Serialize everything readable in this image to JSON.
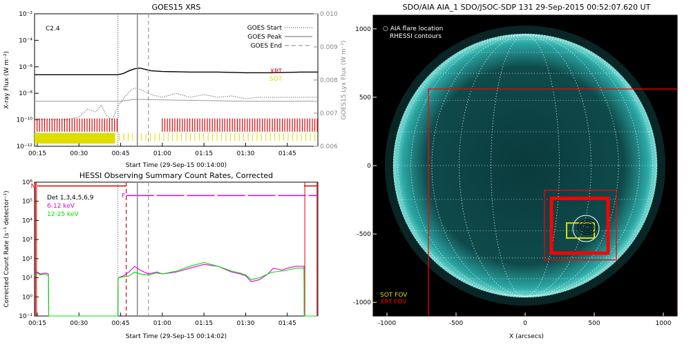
{
  "chart_data": [
    {
      "type": "line",
      "title": "GOES15 XRS",
      "xlabel": "Start Time (29-Sep-15 00:14:00)",
      "ylabel": "X-ray Flux (W m⁻²)",
      "y2label": "GOES15 Lyx Flux (W m⁻²)",
      "x_ticks": [
        "00:15",
        "00:30",
        "00:45",
        "01:00",
        "01:15",
        "01:30",
        "01:45"
      ],
      "x_tick_minutes": [
        15,
        30,
        45,
        60,
        75,
        90,
        105
      ],
      "xlim_minutes": [
        14,
        116
      ],
      "y_ticks": [
        "10⁻²",
        "10⁻⁴",
        "10⁻⁶",
        "10⁻⁸",
        "10⁻¹⁰",
        "10⁻¹²"
      ],
      "y_tick_exponents": [
        -2,
        -4,
        -6,
        -8,
        -10,
        -12
      ],
      "ylim_log": [
        -12,
        -2
      ],
      "y2_ticks": [
        "0.010",
        "0.009",
        "0.008",
        "0.007",
        "0.006"
      ],
      "y2_tick_values": [
        0.01,
        0.009,
        0.008,
        0.007,
        0.006
      ],
      "y2lim": [
        0.006,
        0.01
      ],
      "scale": "log",
      "annotation": "C2.4",
      "legend": {
        "placement": "top-right",
        "entries": [
          {
            "label": "GOES Start",
            "style": "dotted",
            "color": "#555555",
            "minute": 44
          },
          {
            "label": "GOES Peak",
            "style": "solid",
            "color": "#888888",
            "minute": 51
          },
          {
            "label": "GOES End",
            "style": "dashed",
            "color": "#999999",
            "minute": 55
          }
        ]
      },
      "instrument_labels": [
        {
          "label": "XRT",
          "color": "#dd0000"
        },
        {
          "label": "SOT",
          "color": "#dddd00"
        }
      ],
      "series": [
        {
          "name": "",
          "color": "#000000",
          "style": "solid",
          "x": [
            14,
            20,
            30,
            40,
            44,
            46,
            48,
            50,
            52,
            54,
            56,
            60,
            70,
            80,
            90,
            100,
            110,
            116
          ],
          "y_log": [
            -6.6,
            -6.6,
            -6.6,
            -6.6,
            -6.6,
            -6.5,
            -6.3,
            -6.15,
            -6.1,
            -6.2,
            -6.3,
            -6.35,
            -6.4,
            -6.4,
            -6.45,
            -6.45,
            -6.4,
            -6.4
          ]
        },
        {
          "name": "",
          "color": "#333333",
          "style": "dotted",
          "x": [
            14,
            18,
            25,
            30,
            33,
            36,
            38,
            40,
            42,
            44,
            46,
            48,
            50,
            52,
            54,
            56,
            60,
            65,
            70,
            75,
            80,
            85,
            90,
            95,
            100,
            105,
            110,
            116
          ],
          "y_log": [
            -9.9,
            -10.0,
            -10.0,
            -9.8,
            -9.2,
            -9.4,
            -8.9,
            -9.7,
            -10.0,
            -9.0,
            -8.4,
            -7.9,
            -7.6,
            -7.7,
            -7.9,
            -8.1,
            -8.3,
            -8.0,
            -8.3,
            -8.1,
            -8.3,
            -8.2,
            -8.4,
            -8.3,
            -8.3,
            -8.3,
            -8.3,
            -8.3
          ]
        },
        {
          "name": "",
          "color": "#999999",
          "style": "solid",
          "x": [
            14,
            30,
            45,
            50,
            60,
            75,
            90,
            100,
            116
          ],
          "y_log": [
            -8.6,
            -8.6,
            -8.6,
            -8.45,
            -8.5,
            -8.55,
            -8.6,
            -8.6,
            -8.6
          ]
        }
      ],
      "xrt_coverage_minutes": [
        [
          14,
          44.5
        ],
        [
          60,
          116
        ]
      ],
      "sot_coverage_minutes": [
        [
          14,
          43
        ]
      ]
    },
    {
      "type": "line",
      "title": "HESSI Observing Summary Count Rates, Corrected",
      "xlabel": "Start Time (29-Sep-15 00:14:02)",
      "ylabel": "Corrected Count Rate (s⁻¹ detector⁻¹)",
      "x_ticks": [
        "00:15",
        "00:30",
        "00:45",
        "01:00",
        "01:15",
        "01:30",
        "01:45"
      ],
      "x_tick_minutes": [
        15,
        30,
        45,
        60,
        75,
        90,
        105
      ],
      "xlim_minutes": [
        14,
        116
      ],
      "y_ticks": [
        "10⁶",
        "10⁵",
        "10⁴",
        "10³",
        "10²",
        "10¹",
        "10⁰",
        "10⁻¹"
      ],
      "y_tick_exponents": [
        6,
        5,
        4,
        3,
        2,
        1,
        0,
        -1
      ],
      "ylim_log": [
        -1,
        6
      ],
      "scale": "log",
      "legend": {
        "placement": "top-left",
        "entries": [
          {
            "label": "Det 1,3,4,5,6,9",
            "color": "#000000"
          },
          {
            "label": "6-12 keV",
            "color": "#dd00dd"
          },
          {
            "label": "12-25 keV",
            "color": "#00dd00"
          }
        ]
      },
      "flag_labels": [
        {
          "label": "N",
          "color": "#dd0000",
          "minute": 14.5
        },
        {
          "label": "F",
          "color": "#dd00dd",
          "minute": 47
        }
      ],
      "series": [
        {
          "name": "6-12 keV",
          "color": "#dd00dd",
          "x": [
            14,
            15,
            16,
            18,
            19,
            19.1,
            44,
            44.1,
            46,
            48,
            50,
            52,
            55,
            58,
            60,
            65,
            70,
            75,
            80,
            85,
            88,
            90,
            92,
            95,
            98,
            100,
            103,
            105,
            108,
            111,
            111.1,
            116
          ],
          "y_log": [
            1.2,
            1.3,
            1.2,
            1.25,
            1.2,
            -1,
            -1,
            1.0,
            1.1,
            1.3,
            1.6,
            1.4,
            1.2,
            1.3,
            1.2,
            1.3,
            1.5,
            1.7,
            1.6,
            1.3,
            1.2,
            1.1,
            0.8,
            0.9,
            1.2,
            1.5,
            1.4,
            1.5,
            1.6,
            1.6,
            -1,
            -1
          ]
        },
        {
          "name": "12-25 keV",
          "color": "#00dd00",
          "x": [
            14,
            15,
            16,
            18,
            19,
            19.1,
            44,
            44.1,
            46,
            48,
            50,
            52,
            55,
            58,
            60,
            65,
            70,
            75,
            80,
            85,
            88,
            90,
            92,
            95,
            98,
            100,
            103,
            105,
            108,
            111,
            111.1,
            116
          ],
          "y_log": [
            1.1,
            1.25,
            1.15,
            1.2,
            1.1,
            -1,
            -1,
            1.0,
            1.05,
            1.1,
            1.3,
            1.2,
            1.15,
            1.25,
            1.2,
            1.35,
            1.6,
            1.8,
            1.6,
            1.35,
            1.25,
            1.15,
            0.9,
            1.0,
            1.2,
            1.3,
            1.35,
            1.4,
            1.5,
            1.5,
            -1,
            -1
          ]
        }
      ],
      "night_intervals_minutes": [
        [
          14,
          15
        ],
        [
          111,
          116
        ]
      ],
      "saa_level_log": 5.8,
      "flare_flag_level_log": 5.3,
      "flare_flag_minutes": [
        [
          47,
          116
        ]
      ],
      "markers_minutes": {
        "start": 44,
        "peak": 51,
        "end": 55,
        "flag": 47
      }
    },
    {
      "type": "scatter",
      "title": "SDO/AIA AIA_1 SDO/JSOC-SDP 131 29-Sep-2015 00:52:07.620 UT",
      "xlabel": "X (arcsecs)",
      "ylabel": "",
      "x_ticks": [
        "-1000",
        "-500",
        "0",
        "500",
        "1000"
      ],
      "x_tick_values": [
        -1000,
        -500,
        0,
        500,
        1000
      ],
      "y_ticks": [
        "1000",
        "500",
        "0",
        "-500",
        "-1000"
      ],
      "y_tick_values": [
        1000,
        500,
        0,
        -500,
        -1000
      ],
      "xlim": [
        -1100,
        1100
      ],
      "ylim": [
        -1100,
        1100
      ],
      "legend": {
        "placement": "top-left",
        "entries": [
          {
            "label": "○ AIA flare location",
            "color": "#ffffff"
          },
          {
            "label": "RHESSI contours",
            "color": "#ffffff"
          }
        ]
      },
      "fov_legend": {
        "placement": "bottom-left",
        "entries": [
          {
            "label": "SOT FOV",
            "color": "#dddd00"
          },
          {
            "label": "XRT FOV",
            "color": "#ff0000"
          }
        ]
      },
      "solar_radius_arcsec": 955,
      "grid_spacing_deg": 15,
      "flare_location": [
        440,
        -460
      ],
      "flare_circle_radius_arcsec": 95,
      "xrt_fov_boxes": [
        {
          "x0": -700,
          "y0": -1100,
          "x1": 1100,
          "y1": 560,
          "width_hint": "thin"
        },
        {
          "x0": 140,
          "y0": -690,
          "x1": 660,
          "y1": -180,
          "width_hint": "thin"
        },
        {
          "x0": 190,
          "y0": -640,
          "x1": 600,
          "y1": -240,
          "width_hint": "thick"
        }
      ],
      "sot_fov_box": {
        "x0": 300,
        "y0": -530,
        "x1": 500,
        "y1": -420
      },
      "colors": {
        "disk": "#2aa7a4",
        "disk_dark": "#0a3a3c",
        "background": "#000000",
        "limb": "#7fe0d8"
      }
    }
  ]
}
